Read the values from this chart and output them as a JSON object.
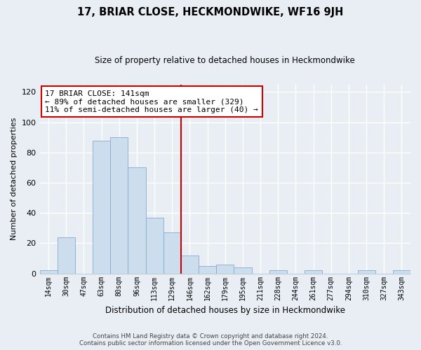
{
  "title": "17, BRIAR CLOSE, HECKMONDWIKE, WF16 9JH",
  "subtitle": "Size of property relative to detached houses in Heckmondwike",
  "xlabel": "Distribution of detached houses by size in Heckmondwike",
  "ylabel": "Number of detached properties",
  "bar_labels": [
    "14sqm",
    "30sqm",
    "47sqm",
    "63sqm",
    "80sqm",
    "96sqm",
    "113sqm",
    "129sqm",
    "146sqm",
    "162sqm",
    "179sqm",
    "195sqm",
    "211sqm",
    "228sqm",
    "244sqm",
    "261sqm",
    "277sqm",
    "294sqm",
    "310sqm",
    "327sqm",
    "343sqm"
  ],
  "bar_values": [
    2,
    24,
    0,
    88,
    90,
    70,
    37,
    27,
    12,
    5,
    6,
    4,
    0,
    2,
    0,
    2,
    0,
    0,
    2,
    0,
    2
  ],
  "bar_color": "#ccdded",
  "bar_edge_color": "#88aacc",
  "property_line_label": "17 BRIAR CLOSE: 141sqm",
  "annotation_line1": "← 89% of detached houses are smaller (329)",
  "annotation_line2": "11% of semi-detached houses are larger (40) →",
  "annotation_box_color": "#ffffff",
  "annotation_box_edge_color": "#cc0000",
  "vline_color": "#cc0000",
  "ylim": [
    0,
    125
  ],
  "yticks": [
    0,
    20,
    40,
    60,
    80,
    100,
    120
  ],
  "footer_line1": "Contains HM Land Registry data © Crown copyright and database right 2024.",
  "footer_line2": "Contains public sector information licensed under the Open Government Licence v3.0.",
  "bg_color": "#e8eef4",
  "plot_bg_color": "#e8eef4",
  "grid_color": "#ffffff",
  "spine_color": "#bbccdd"
}
